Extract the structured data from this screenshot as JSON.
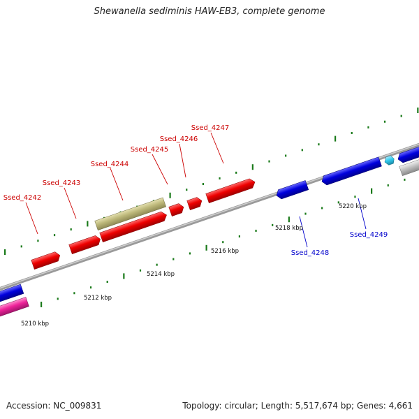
{
  "title": "Shewanella sediminis HAW-EB3, complete genome",
  "footer": {
    "accession": "Accession: NC_009831",
    "topology": "Topology: circular; Length: 5,517,674 bp; Genes: 4,661"
  },
  "colors": {
    "forward_gene": "#ee0000",
    "reverse_gene": "#0000dd",
    "other_gene": "#bdb87a",
    "pink_gene": "#ee2299",
    "cyan_gene": "#33ccee",
    "gray_gene": "#c0c0c0",
    "backbone": "#8a8a8a",
    "tick": "#1a7a1a",
    "forward_label": "#cc0000",
    "reverse_label": "#0000cc"
  },
  "scale_labels": [
    {
      "kbp": 5210,
      "text": "5210 kbp"
    },
    {
      "kbp": 5212,
      "text": "5212 kbp"
    },
    {
      "kbp": 5214,
      "text": "5214 kbp"
    },
    {
      "kbp": 5216,
      "text": "5216 kbp"
    },
    {
      "kbp": 5218,
      "text": "5218 kbp"
    },
    {
      "kbp": 5220,
      "text": "5220 kbp"
    }
  ],
  "gene_labels": [
    {
      "name": "Ssed_4242",
      "strand": "forward"
    },
    {
      "name": "Ssed_4243",
      "strand": "forward"
    },
    {
      "name": "Ssed_4244",
      "strand": "forward"
    },
    {
      "name": "Ssed_4245",
      "strand": "forward"
    },
    {
      "name": "Ssed_4246",
      "strand": "forward"
    },
    {
      "name": "Ssed_4247",
      "strand": "forward"
    },
    {
      "name": "Ssed_4248",
      "strand": "reverse"
    },
    {
      "name": "Ssed_4249",
      "strand": "reverse"
    }
  ]
}
